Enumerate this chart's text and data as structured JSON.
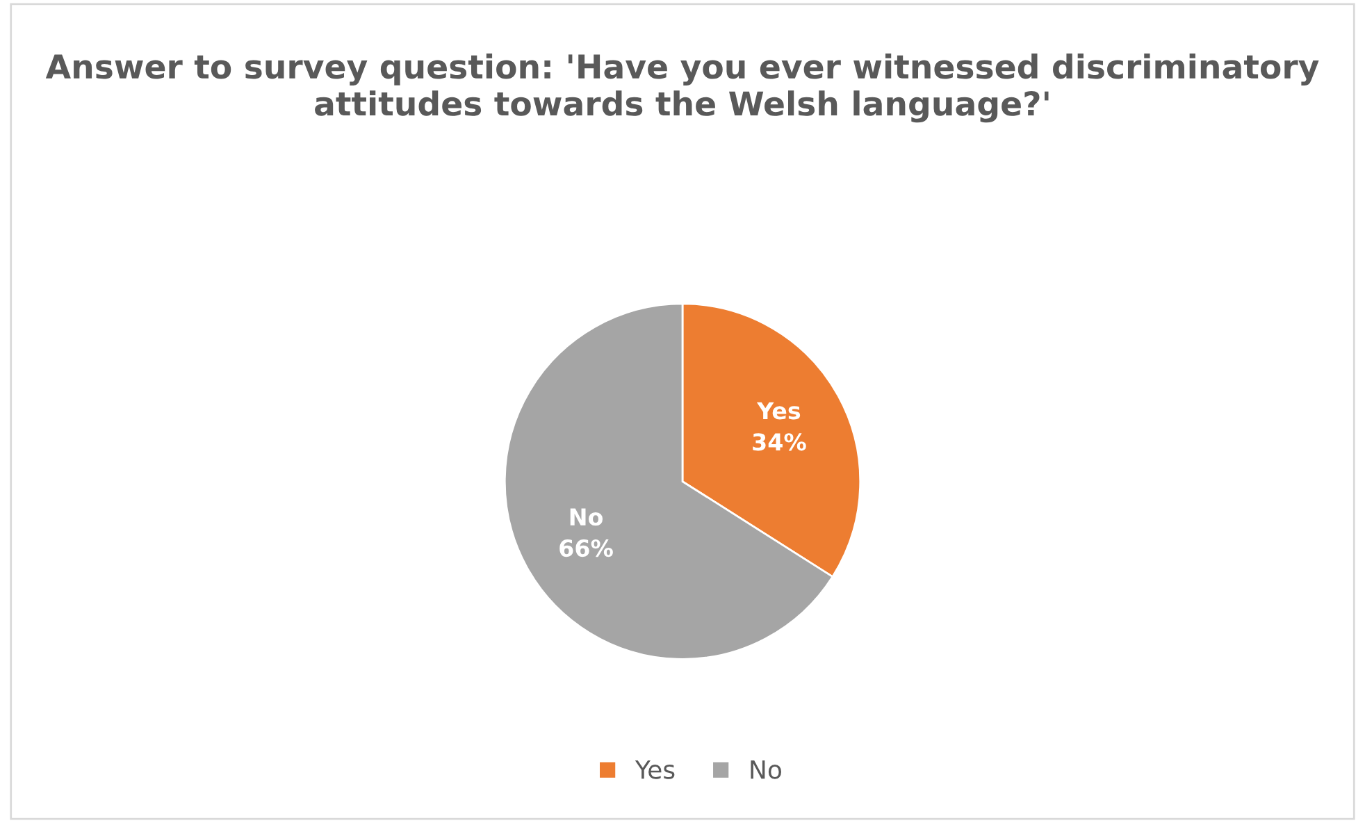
{
  "chart_data": {
    "type": "pie",
    "title": "Answer to survey question: 'Have you ever witnessed discriminatory attitudes towards the Welsh language?'",
    "categories": [
      "Yes",
      "No"
    ],
    "values": [
      34,
      66
    ],
    "colors": [
      "#ed7d31",
      "#a5a5a5"
    ],
    "value_labels": [
      "34%",
      "66%"
    ],
    "legend": "bottom"
  }
}
